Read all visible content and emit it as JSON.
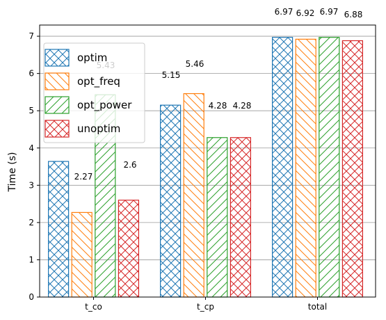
{
  "chart_data": {
    "type": "bar",
    "title": "",
    "xlabel": "",
    "ylabel": "Time (s)",
    "ylim": [
      0,
      7.3
    ],
    "yticks": [
      0,
      1,
      2,
      3,
      4,
      5,
      6,
      7
    ],
    "grid": "horizontal",
    "legend_position": "top-left",
    "categories": [
      "t_co",
      "t_cp",
      "total"
    ],
    "series": [
      {
        "name": "optim",
        "color": "#1f77b4",
        "hatch": "cross",
        "values": [
          3.64,
          5.15,
          6.97
        ],
        "labels": [
          "",
          "5.15",
          "6.97"
        ]
      },
      {
        "name": "opt_freq",
        "color": "#ff7f0e",
        "hatch": "back-diagonal",
        "values": [
          2.27,
          5.46,
          6.92
        ],
        "labels": [
          "2.27",
          "5.46",
          "6.92"
        ]
      },
      {
        "name": "opt_power",
        "color": "#2ca02c",
        "hatch": "forward-diagonal",
        "values": [
          5.43,
          4.28,
          6.97
        ],
        "labels": [
          "5.43",
          "4.28",
          "6.97"
        ]
      },
      {
        "name": "unoptim",
        "color": "#d62728",
        "hatch": "cross",
        "values": [
          2.6,
          4.28,
          6.88
        ],
        "labels": [
          "2.6",
          "4.28",
          "6.88"
        ]
      }
    ]
  }
}
